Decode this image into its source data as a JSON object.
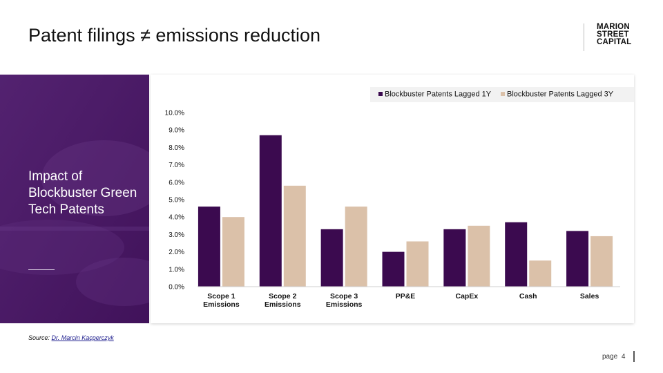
{
  "slide": {
    "title": "Patent filings ≠ emissions reduction",
    "logo_lines": [
      "MARION",
      "STREET",
      "CAPITAL"
    ],
    "panel_title": "Impact of Blockbuster Green Tech Patents",
    "source_prefix": "Source: ",
    "source_link": "Dr. Marcin  Kacperczyk",
    "page_label": "page",
    "page_number": "4"
  },
  "colors": {
    "panel": "#4a1866",
    "series1": "#3b0a4f",
    "series2": "#dbc1a9"
  },
  "chart_data": {
    "type": "bar",
    "title": "",
    "categories": [
      [
        "Scope 1",
        "Emissions"
      ],
      [
        "Scope 2",
        "Emissions"
      ],
      [
        "Scope 3",
        "Emissions"
      ],
      [
        "PP&E"
      ],
      [
        "CapEx"
      ],
      [
        "Cash"
      ],
      [
        "Sales"
      ]
    ],
    "series": [
      {
        "name": "Blockbuster Patents Lagged 1Y",
        "values": [
          4.6,
          8.7,
          3.3,
          2.0,
          3.3,
          3.7,
          3.2
        ]
      },
      {
        "name": "Blockbuster Patents Lagged 3Y",
        "values": [
          4.0,
          5.8,
          4.6,
          2.6,
          3.5,
          1.5,
          2.9
        ]
      }
    ],
    "yticks": [
      "0.0%",
      "1.0%",
      "2.0%",
      "3.0%",
      "4.0%",
      "5.0%",
      "6.0%",
      "7.0%",
      "8.0%",
      "9.0%",
      "10.0%"
    ],
    "ylim": [
      0,
      10
    ],
    "xlabel": "",
    "ylabel": "",
    "legend": "top-right",
    "grid": false
  }
}
